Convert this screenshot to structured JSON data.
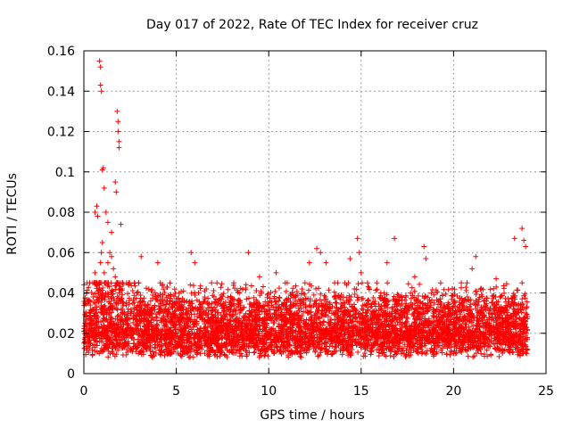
{
  "chart_data": {
    "type": "scatter",
    "title": "Day 017 of 2022, Rate Of TEC Index for receiver cruz",
    "xlabel": "GPS time / hours",
    "ylabel": "ROTI / TECUs",
    "xlim": [
      0,
      25
    ],
    "ylim": [
      0,
      0.16
    ],
    "xticks": [
      0,
      5,
      10,
      15,
      20,
      25
    ],
    "xtick_labels": [
      "0",
      "5",
      "10",
      "15",
      "20",
      "25"
    ],
    "yticks": [
      0,
      0.02,
      0.04,
      0.06,
      0.08,
      0.1,
      0.12,
      0.14,
      0.16
    ],
    "ytick_labels": [
      "0",
      "0.02",
      "0.04",
      "0.06",
      "0.08",
      "0.1",
      "0.12",
      "0.14",
      "0.16"
    ],
    "grid": true,
    "marker": "+",
    "color": "#ff0000",
    "series": [
      {
        "name": "ROTI",
        "x": [
          0.0,
          0.1,
          0.2,
          0.3,
          0.4,
          0.5,
          0.6,
          0.7,
          0.8,
          0.85,
          0.9,
          0.95,
          1.0,
          1.1,
          1.2,
          1.3,
          1.4,
          1.5,
          1.6,
          1.7,
          1.8,
          1.9,
          2.0,
          2.1,
          2.2,
          2.3,
          2.4,
          2.5,
          2.7,
          2.9,
          3.1,
          3.3,
          3.5,
          3.7,
          3.9,
          4.1,
          4.3,
          4.5,
          4.7,
          4.9,
          5.1,
          5.3,
          5.5,
          5.7,
          5.9,
          6.1,
          6.3,
          6.5,
          6.7,
          6.9,
          7.1,
          7.3,
          7.5,
          7.7,
          7.9,
          8.1,
          8.3,
          8.5,
          8.7,
          8.9,
          9.1,
          9.3,
          9.5,
          9.7,
          9.9,
          10.1,
          10.3,
          10.5,
          10.7,
          10.9,
          11.1,
          11.3,
          11.5,
          11.7,
          11.9,
          12.1,
          12.3,
          12.5,
          12.7,
          12.9,
          13.1,
          13.3,
          13.5,
          13.7,
          13.9,
          14.1,
          14.3,
          14.5,
          14.7,
          14.9,
          15.1,
          15.3,
          15.5,
          15.7,
          15.9,
          16.1,
          16.3,
          16.5,
          16.7,
          16.9,
          17.1,
          17.3,
          17.5,
          17.7,
          17.9,
          18.1,
          18.3,
          18.5,
          18.7,
          18.9,
          19.1,
          19.3,
          19.5,
          19.7,
          19.9,
          20.1,
          20.3,
          20.5,
          20.7,
          20.9,
          21.1,
          21.3,
          21.5,
          21.7,
          21.9,
          22.1,
          22.3,
          22.5,
          22.7,
          22.9,
          23.1,
          23.3,
          23.5,
          23.7,
          23.9,
          0.85,
          0.9,
          0.9,
          0.95,
          1.0,
          1.05,
          1.1,
          1.8,
          1.85,
          1.85,
          1.9,
          1.9,
          1.7,
          1.75,
          0.6,
          0.7,
          0.75,
          1.2,
          1.3,
          1.5,
          2.0,
          3.1,
          4.0,
          5.8,
          6.0,
          7.2,
          8.9,
          9.5,
          10.4,
          11.0,
          12.2,
          12.6,
          12.8,
          13.1,
          14.4,
          14.8,
          14.9,
          15.0,
          16.4,
          16.8,
          17.9,
          18.4,
          18.5,
          19.3,
          21.0,
          21.2,
          22.3,
          23.3,
          23.7,
          23.8,
          23.9
        ],
        "y": [
          0.021,
          0.028,
          0.035,
          0.03,
          0.024,
          0.038,
          0.05,
          0.045,
          0.04,
          0.042,
          0.055,
          0.06,
          0.065,
          0.05,
          0.045,
          0.055,
          0.06,
          0.058,
          0.052,
          0.048,
          0.045,
          0.04,
          0.042,
          0.035,
          0.03,
          0.028,
          0.032,
          0.027,
          0.03,
          0.033,
          0.029,
          0.034,
          0.026,
          0.03,
          0.028,
          0.032,
          0.027,
          0.031,
          0.026,
          0.029,
          0.028,
          0.033,
          0.03,
          0.027,
          0.032,
          0.025,
          0.028,
          0.03,
          0.026,
          0.031,
          0.029,
          0.035,
          0.027,
          0.024,
          0.022,
          0.026,
          0.023,
          0.025,
          0.028,
          0.024,
          0.026,
          0.029,
          0.031,
          0.027,
          0.025,
          0.028,
          0.03,
          0.033,
          0.029,
          0.027,
          0.031,
          0.034,
          0.03,
          0.028,
          0.026,
          0.03,
          0.033,
          0.036,
          0.034,
          0.031,
          0.029,
          0.032,
          0.03,
          0.028,
          0.027,
          0.029,
          0.031,
          0.033,
          0.03,
          0.028,
          0.026,
          0.03,
          0.033,
          0.031,
          0.029,
          0.032,
          0.034,
          0.036,
          0.033,
          0.03,
          0.028,
          0.031,
          0.033,
          0.035,
          0.032,
          0.03,
          0.028,
          0.031,
          0.033,
          0.03,
          0.028,
          0.031,
          0.034,
          0.032,
          0.029,
          0.031,
          0.033,
          0.035,
          0.033,
          0.03,
          0.028,
          0.031,
          0.033,
          0.034,
          0.03,
          0.028,
          0.026,
          0.029,
          0.031,
          0.033,
          0.028,
          0.03,
          0.032,
          0.034,
          0.03,
          0.155,
          0.152,
          0.143,
          0.14,
          0.101,
          0.102,
          0.092,
          0.13,
          0.125,
          0.12,
          0.115,
          0.112,
          0.095,
          0.09,
          0.08,
          0.083,
          0.078,
          0.08,
          0.075,
          0.07,
          0.074,
          0.058,
          0.055,
          0.06,
          0.055,
          0.045,
          0.06,
          0.048,
          0.05,
          0.045,
          0.055,
          0.062,
          0.06,
          0.055,
          0.057,
          0.067,
          0.06,
          0.05,
          0.055,
          0.067,
          0.048,
          0.063,
          0.057,
          0.045,
          0.052,
          0.058,
          0.047,
          0.067,
          0.072,
          0.066,
          0.063
        ]
      }
    ]
  }
}
